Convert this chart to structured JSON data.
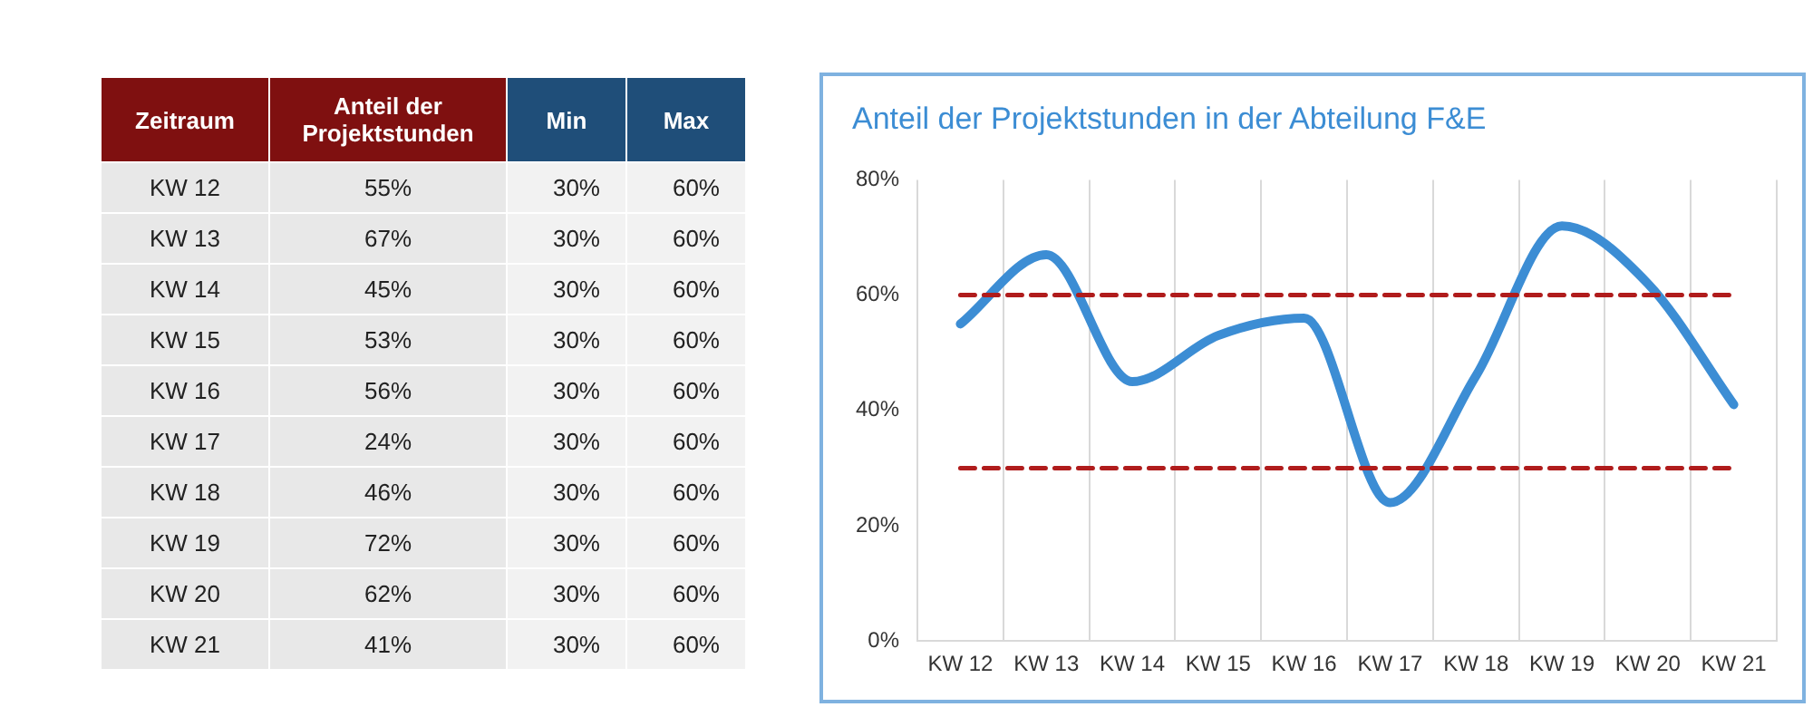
{
  "chart_data": [
    {
      "type": "other",
      "annotations": [
        "Zeitraum",
        "Anteil der Projektstunden",
        "Min",
        "Max",
        "KW 12",
        "55%",
        "30%",
        "60%",
        "KW 13",
        "67%",
        "30%",
        "60%",
        "KW 14",
        "45%",
        "30%",
        "60%",
        "KW 15",
        "53%",
        "30%",
        "60%",
        "KW 16",
        "56%",
        "30%",
        "60%",
        "KW 17",
        "24%",
        "30%",
        "60%",
        "KW 18",
        "46%",
        "30%",
        "60%",
        "KW 19",
        "72%",
        "30%",
        "60%",
        "KW 20",
        "62%",
        "30%",
        "60%",
        "KW 21",
        "41%",
        "30%",
        "60%"
      ]
    },
    {
      "type": "line",
      "title": "Anteil der Projektstunden in der Abteilung F&E",
      "categories": [
        "KW 12",
        "KW 13",
        "KW 14",
        "KW 15",
        "KW 16",
        "KW 17",
        "KW 18",
        "KW 19",
        "KW 20",
        "KW 21"
      ],
      "series": [
        {
          "color": "#3c8dd4",
          "values": [
            55,
            67,
            45,
            53,
            56,
            24,
            46,
            72,
            62,
            41
          ]
        },
        {
          "color": "#b01c1c",
          "line_style": "dashed",
          "values": [
            30,
            30,
            30,
            30,
            30,
            30,
            30,
            30,
            30,
            30
          ]
        },
        {
          "color": "#b01c1c",
          "line_style": "dashed",
          "values": [
            60,
            60,
            60,
            60,
            60,
            60,
            60,
            60,
            60,
            60
          ]
        }
      ],
      "ylim": [
        0,
        80
      ],
      "yticks": [
        {
          "value": 0,
          "label": "0%"
        },
        {
          "value": 20,
          "label": "20%"
        },
        {
          "value": 40,
          "label": "40%"
        },
        {
          "value": 60,
          "label": "60%"
        },
        {
          "value": 80,
          "label": "80%"
        }
      ],
      "grid": "x",
      "legend": false,
      "marker": "none"
    }
  ]
}
